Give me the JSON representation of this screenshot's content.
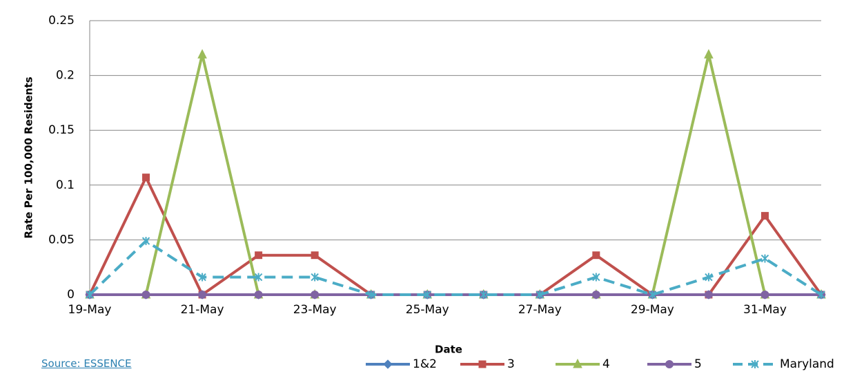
{
  "source": "Source: ESSENCE",
  "chart_data": {
    "type": "line",
    "x_label": "Date",
    "y_label": "Rate Per 100,000 Residents",
    "categories": [
      "19-May",
      null,
      "21-May",
      null,
      "23-May",
      null,
      "25-May",
      null,
      "27-May",
      null,
      "29-May",
      null,
      "31-May",
      null
    ],
    "series": [
      {
        "name": "1&2",
        "color": "#4f81bd",
        "marker": "diamond",
        "dash": false,
        "values": [
          0,
          0,
          0,
          0,
          0,
          0,
          0,
          0,
          0,
          0,
          0,
          0,
          0,
          0
        ]
      },
      {
        "name": "3",
        "color": "#c0504d",
        "marker": "square",
        "dash": false,
        "values": [
          0,
          0.107,
          0,
          0.036,
          0.036,
          0,
          0,
          0,
          0,
          0.036,
          0,
          0,
          0.072,
          0
        ]
      },
      {
        "name": "4",
        "color": "#9bbb59",
        "marker": "triangle",
        "dash": false,
        "values": [
          0,
          0,
          0.219,
          0,
          0,
          0,
          0,
          0,
          0,
          0,
          0,
          0.219,
          0,
          0
        ]
      },
      {
        "name": "5",
        "color": "#8064a2",
        "marker": "circle",
        "dash": false,
        "values": [
          0,
          0,
          0,
          0,
          0,
          0,
          0,
          0,
          0,
          0,
          0,
          0,
          0,
          0
        ]
      },
      {
        "name": "Maryland",
        "color": "#4bacc6",
        "marker": "star",
        "dash": true,
        "values": [
          0,
          0.049,
          0.016,
          0.016,
          0.016,
          0,
          0,
          0,
          0,
          0.016,
          0,
          0.016,
          0.033,
          0
        ]
      }
    ],
    "ylim": [
      0,
      0.25
    ],
    "yticks": [
      0,
      0.05,
      0.1,
      0.15,
      0.2,
      0.25
    ],
    "grid": true,
    "legend": "bottom"
  }
}
